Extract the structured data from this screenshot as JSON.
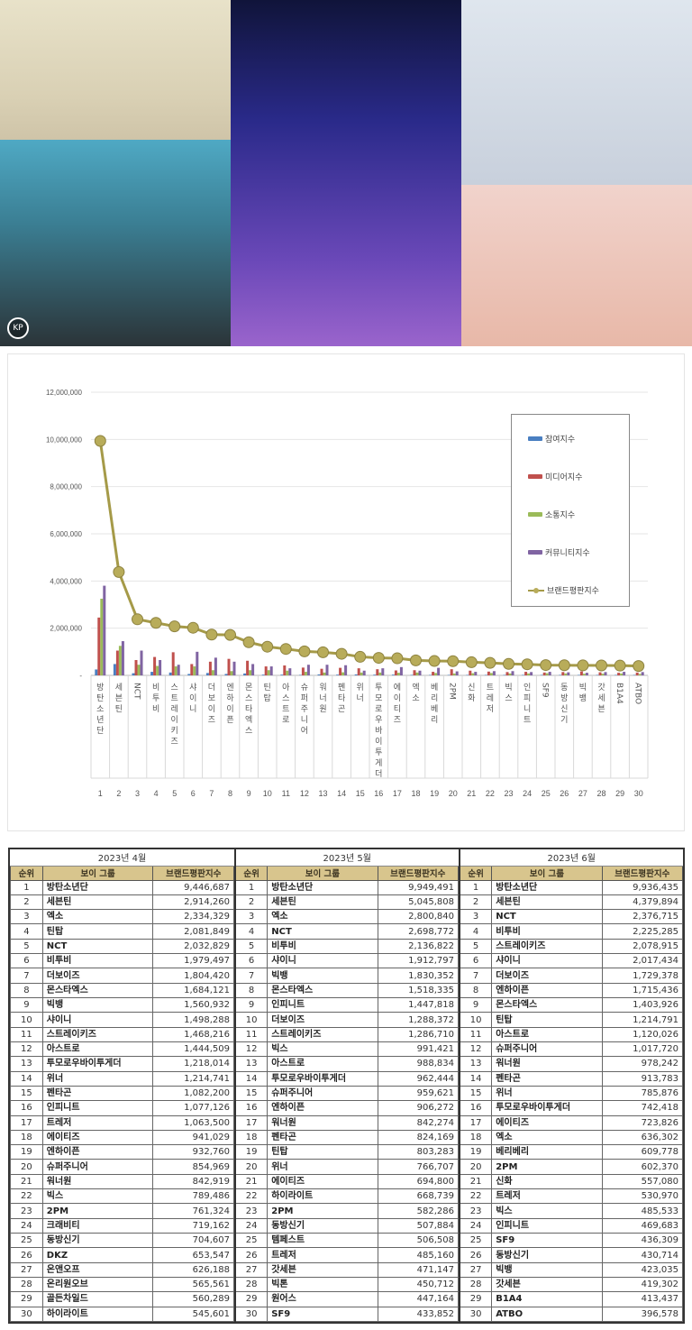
{
  "photos": {
    "panels": [
      {
        "id": "top-left-upper",
        "description": "group photo, beige room"
      },
      {
        "id": "top-left-lower",
        "description": "group photo, blue background",
        "badge": "KP"
      },
      {
        "id": "center",
        "description": "group photo, purple stage"
      },
      {
        "id": "top-right-upper",
        "description": "group photo, sashes"
      },
      {
        "id": "top-right-lower",
        "description": "group photo, pink background"
      }
    ]
  },
  "chart_data": {
    "type": "bar",
    "title": "",
    "xlabel": "",
    "ylabel": "",
    "ylim": [
      0,
      12000000
    ],
    "yticks": [
      "-",
      "2,000,000",
      "4,000,000",
      "6,000,000",
      "8,000,000",
      "10,000,000",
      "12,000,000"
    ],
    "grid": true,
    "legend_position": "upper-right",
    "categories": [
      "방탄소년단",
      "세븐틴",
      "NCT",
      "비투비",
      "스트레이키즈",
      "샤이니",
      "더보이즈",
      "엔하이픈",
      "몬스타엑스",
      "틴탑",
      "아스트로",
      "슈퍼주니어",
      "워너원",
      "펜타곤",
      "위너",
      "투모로우바이투게더",
      "에이티즈",
      "엑소",
      "베리베리",
      "2PM",
      "신화",
      "트레저",
      "빅스",
      "인피니트",
      "SF9",
      "동방신기",
      "빅뱅",
      "갓세븐",
      "B1A4",
      "ATBO"
    ],
    "x_numbers": [
      "1",
      "2",
      "3",
      "4",
      "5",
      "6",
      "7",
      "8",
      "9",
      "10",
      "11",
      "12",
      "13",
      "14",
      "15",
      "16",
      "17",
      "18",
      "19",
      "20",
      "21",
      "22",
      "23",
      "24",
      "25",
      "26",
      "27",
      "28",
      "29",
      "30"
    ],
    "series": [
      {
        "name": "참여지수",
        "type": "bar",
        "color": "#4a7fc1",
        "values": [
          250000,
          480000,
          90000,
          150000,
          120000,
          60000,
          100000,
          60000,
          80000,
          30000,
          30000,
          20000,
          40000,
          30000,
          40000,
          30000,
          30000,
          20000,
          20000,
          20000,
          20000,
          20000,
          20000,
          20000,
          20000,
          20000,
          20000,
          20000,
          20000,
          20000
        ]
      },
      {
        "name": "미디어지수",
        "type": "bar",
        "color": "#c0504d",
        "values": [
          2450000,
          1050000,
          650000,
          780000,
          980000,
          480000,
          580000,
          700000,
          620000,
          380000,
          420000,
          330000,
          280000,
          320000,
          300000,
          260000,
          210000,
          220000,
          150000,
          260000,
          200000,
          160000,
          140000,
          150000,
          120000,
          140000,
          170000,
          130000,
          110000,
          120000
        ]
      },
      {
        "name": "소통지수",
        "type": "bar",
        "color": "#9bbb59",
        "values": [
          3250000,
          1250000,
          450000,
          400000,
          380000,
          380000,
          220000,
          180000,
          220000,
          220000,
          200000,
          150000,
          120000,
          130000,
          120000,
          120000,
          110000,
          120000,
          100000,
          80000,
          90000,
          100000,
          80000,
          80000,
          90000,
          80000,
          70000,
          70000,
          80000,
          60000
        ]
      },
      {
        "name": "커뮤니티지수",
        "type": "bar",
        "color": "#8064a2",
        "values": [
          3800000,
          1450000,
          1050000,
          650000,
          450000,
          1000000,
          750000,
          580000,
          480000,
          380000,
          300000,
          450000,
          450000,
          430000,
          200000,
          300000,
          350000,
          200000,
          320000,
          170000,
          150000,
          180000,
          180000,
          140000,
          150000,
          130000,
          110000,
          140000,
          150000,
          140000
        ]
      },
      {
        "name": "브랜드평판지수",
        "type": "line",
        "color": "#a59a48",
        "values": [
          9936435,
          4379894,
          2376715,
          2225285,
          2078915,
          2017434,
          1729378,
          1715436,
          1403926,
          1214791,
          1120026,
          1017720,
          978242,
          913783,
          785876,
          742418,
          723826,
          636302,
          609778,
          602370,
          557080,
          530970,
          485533,
          469683,
          436309,
          430714,
          423035,
          419302,
          413437,
          396578
        ]
      }
    ]
  },
  "legend": {
    "items": [
      {
        "label": "참여지수",
        "color": "#4a7fc1",
        "kind": "bar"
      },
      {
        "label": "미디어지수",
        "color": "#c0504d",
        "kind": "bar"
      },
      {
        "label": "소통지수",
        "color": "#9bbb59",
        "kind": "bar"
      },
      {
        "label": "커뮤니티지수",
        "color": "#8064a2",
        "kind": "bar"
      },
      {
        "label": "브랜드평판지수",
        "color": "#a59a48",
        "kind": "line"
      }
    ]
  },
  "tables": {
    "col_rank": "순위",
    "col_group": "보이 그룹",
    "col_score": "브랜드평판지수",
    "months": [
      {
        "title": "2023년 4월",
        "rows": [
          [
            "1",
            "방탄소년단",
            "9,446,687"
          ],
          [
            "2",
            "세븐틴",
            "2,914,260"
          ],
          [
            "3",
            "엑소",
            "2,334,329"
          ],
          [
            "4",
            "틴탑",
            "2,081,849"
          ],
          [
            "5",
            "NCT",
            "2,032,829"
          ],
          [
            "6",
            "비투비",
            "1,979,497"
          ],
          [
            "7",
            "더보이즈",
            "1,804,420"
          ],
          [
            "8",
            "몬스타엑스",
            "1,684,121"
          ],
          [
            "9",
            "빅뱅",
            "1,560,932"
          ],
          [
            "10",
            "샤이니",
            "1,498,288"
          ],
          [
            "11",
            "스트레이키즈",
            "1,468,216"
          ],
          [
            "12",
            "아스트로",
            "1,444,509"
          ],
          [
            "13",
            "투모로우바이투게더",
            "1,218,014"
          ],
          [
            "14",
            "위너",
            "1,214,741"
          ],
          [
            "15",
            "펜타곤",
            "1,082,200"
          ],
          [
            "16",
            "인피니트",
            "1,077,126"
          ],
          [
            "17",
            "트레저",
            "1,063,500"
          ],
          [
            "18",
            "에이티즈",
            "941,029"
          ],
          [
            "19",
            "엔하이픈",
            "932,760"
          ],
          [
            "20",
            "슈퍼주니어",
            "854,969"
          ],
          [
            "21",
            "워너원",
            "842,919"
          ],
          [
            "22",
            "빅스",
            "789,486"
          ],
          [
            "23",
            "2PM",
            "761,324"
          ],
          [
            "24",
            "크래비티",
            "719,162"
          ],
          [
            "25",
            "동방신기",
            "704,607"
          ],
          [
            "26",
            "DKZ",
            "653,547"
          ],
          [
            "27",
            "온앤오프",
            "626,188"
          ],
          [
            "28",
            "온리원오브",
            "565,561"
          ],
          [
            "29",
            "골든차일드",
            "560,289"
          ],
          [
            "30",
            "하이라이트",
            "545,601"
          ]
        ]
      },
      {
        "title": "2023년 5월",
        "rows": [
          [
            "1",
            "방탄소년단",
            "9,949,491"
          ],
          [
            "2",
            "세븐틴",
            "5,045,808"
          ],
          [
            "3",
            "엑소",
            "2,800,840"
          ],
          [
            "4",
            "NCT",
            "2,698,772"
          ],
          [
            "5",
            "비투비",
            "2,136,822"
          ],
          [
            "6",
            "샤이니",
            "1,912,797"
          ],
          [
            "7",
            "빅뱅",
            "1,830,352"
          ],
          [
            "8",
            "몬스타엑스",
            "1,518,335"
          ],
          [
            "9",
            "인피니트",
            "1,447,818"
          ],
          [
            "10",
            "더보이즈",
            "1,288,372"
          ],
          [
            "11",
            "스트레이키즈",
            "1,286,710"
          ],
          [
            "12",
            "빅스",
            "991,421"
          ],
          [
            "13",
            "아스트로",
            "988,834"
          ],
          [
            "14",
            "투모로우바이투게더",
            "962,444"
          ],
          [
            "15",
            "슈퍼주니어",
            "959,621"
          ],
          [
            "16",
            "엔하이픈",
            "906,272"
          ],
          [
            "17",
            "워너원",
            "842,274"
          ],
          [
            "18",
            "펜타곤",
            "824,169"
          ],
          [
            "19",
            "틴탑",
            "803,283"
          ],
          [
            "20",
            "위너",
            "766,707"
          ],
          [
            "21",
            "에이티즈",
            "694,800"
          ],
          [
            "22",
            "하이라이트",
            "668,739"
          ],
          [
            "23",
            "2PM",
            "582,286"
          ],
          [
            "24",
            "동방신기",
            "507,884"
          ],
          [
            "25",
            "템페스트",
            "506,508"
          ],
          [
            "26",
            "트레저",
            "485,160"
          ],
          [
            "27",
            "갓세븐",
            "471,147"
          ],
          [
            "28",
            "빅톤",
            "450,712"
          ],
          [
            "29",
            "원어스",
            "447,164"
          ],
          [
            "30",
            "SF9",
            "433,852"
          ]
        ]
      },
      {
        "title": "2023년 6월",
        "rows": [
          [
            "1",
            "방탄소년단",
            "9,936,435"
          ],
          [
            "2",
            "세븐틴",
            "4,379,894"
          ],
          [
            "3",
            "NCT",
            "2,376,715"
          ],
          [
            "4",
            "비투비",
            "2,225,285"
          ],
          [
            "5",
            "스트레이키즈",
            "2,078,915"
          ],
          [
            "6",
            "샤이니",
            "2,017,434"
          ],
          [
            "7",
            "더보이즈",
            "1,729,378"
          ],
          [
            "8",
            "엔하이픈",
            "1,715,436"
          ],
          [
            "9",
            "몬스타엑스",
            "1,403,926"
          ],
          [
            "10",
            "틴탑",
            "1,214,791"
          ],
          [
            "11",
            "아스트로",
            "1,120,026"
          ],
          [
            "12",
            "슈퍼주니어",
            "1,017,720"
          ],
          [
            "13",
            "워너원",
            "978,242"
          ],
          [
            "14",
            "펜타곤",
            "913,783"
          ],
          [
            "15",
            "위너",
            "785,876"
          ],
          [
            "16",
            "투모로우바이투게더",
            "742,418"
          ],
          [
            "17",
            "에이티즈",
            "723,826"
          ],
          [
            "18",
            "엑소",
            "636,302"
          ],
          [
            "19",
            "베리베리",
            "609,778"
          ],
          [
            "20",
            "2PM",
            "602,370"
          ],
          [
            "21",
            "신화",
            "557,080"
          ],
          [
            "22",
            "트레저",
            "530,970"
          ],
          [
            "23",
            "빅스",
            "485,533"
          ],
          [
            "24",
            "인피니트",
            "469,683"
          ],
          [
            "25",
            "SF9",
            "436,309"
          ],
          [
            "26",
            "동방신기",
            "430,714"
          ],
          [
            "27",
            "빅뱅",
            "423,035"
          ],
          [
            "28",
            "갓세븐",
            "419,302"
          ],
          [
            "29",
            "B1A4",
            "413,437"
          ],
          [
            "30",
            "ATBO",
            "396,578"
          ]
        ]
      }
    ]
  }
}
